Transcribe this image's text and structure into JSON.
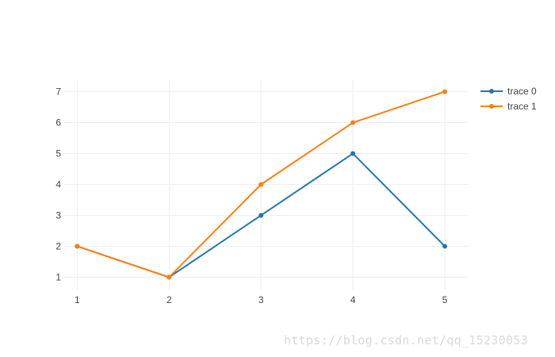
{
  "chart_data": {
    "type": "line",
    "x": [
      1,
      2,
      3,
      4,
      5
    ],
    "series": [
      {
        "name": "trace 0",
        "values": [
          2,
          1,
          3,
          5,
          2
        ],
        "color": "#1f77b4",
        "marker": "circle"
      },
      {
        "name": "trace 1",
        "values": [
          2,
          1,
          4,
          6,
          7
        ],
        "color": "#ff7f0e",
        "marker": "circle"
      }
    ],
    "x_ticks": [
      "1",
      "2",
      "3",
      "4",
      "5"
    ],
    "y_ticks": [
      "1",
      "2",
      "3",
      "4",
      "5",
      "6",
      "7"
    ],
    "xlim": [
      0.85,
      5.25
    ],
    "ylim": [
      0.6,
      7.4
    ],
    "grid": true,
    "legend_position": "top-right"
  },
  "watermark": "https://blog.csdn.net/qq_15230053"
}
